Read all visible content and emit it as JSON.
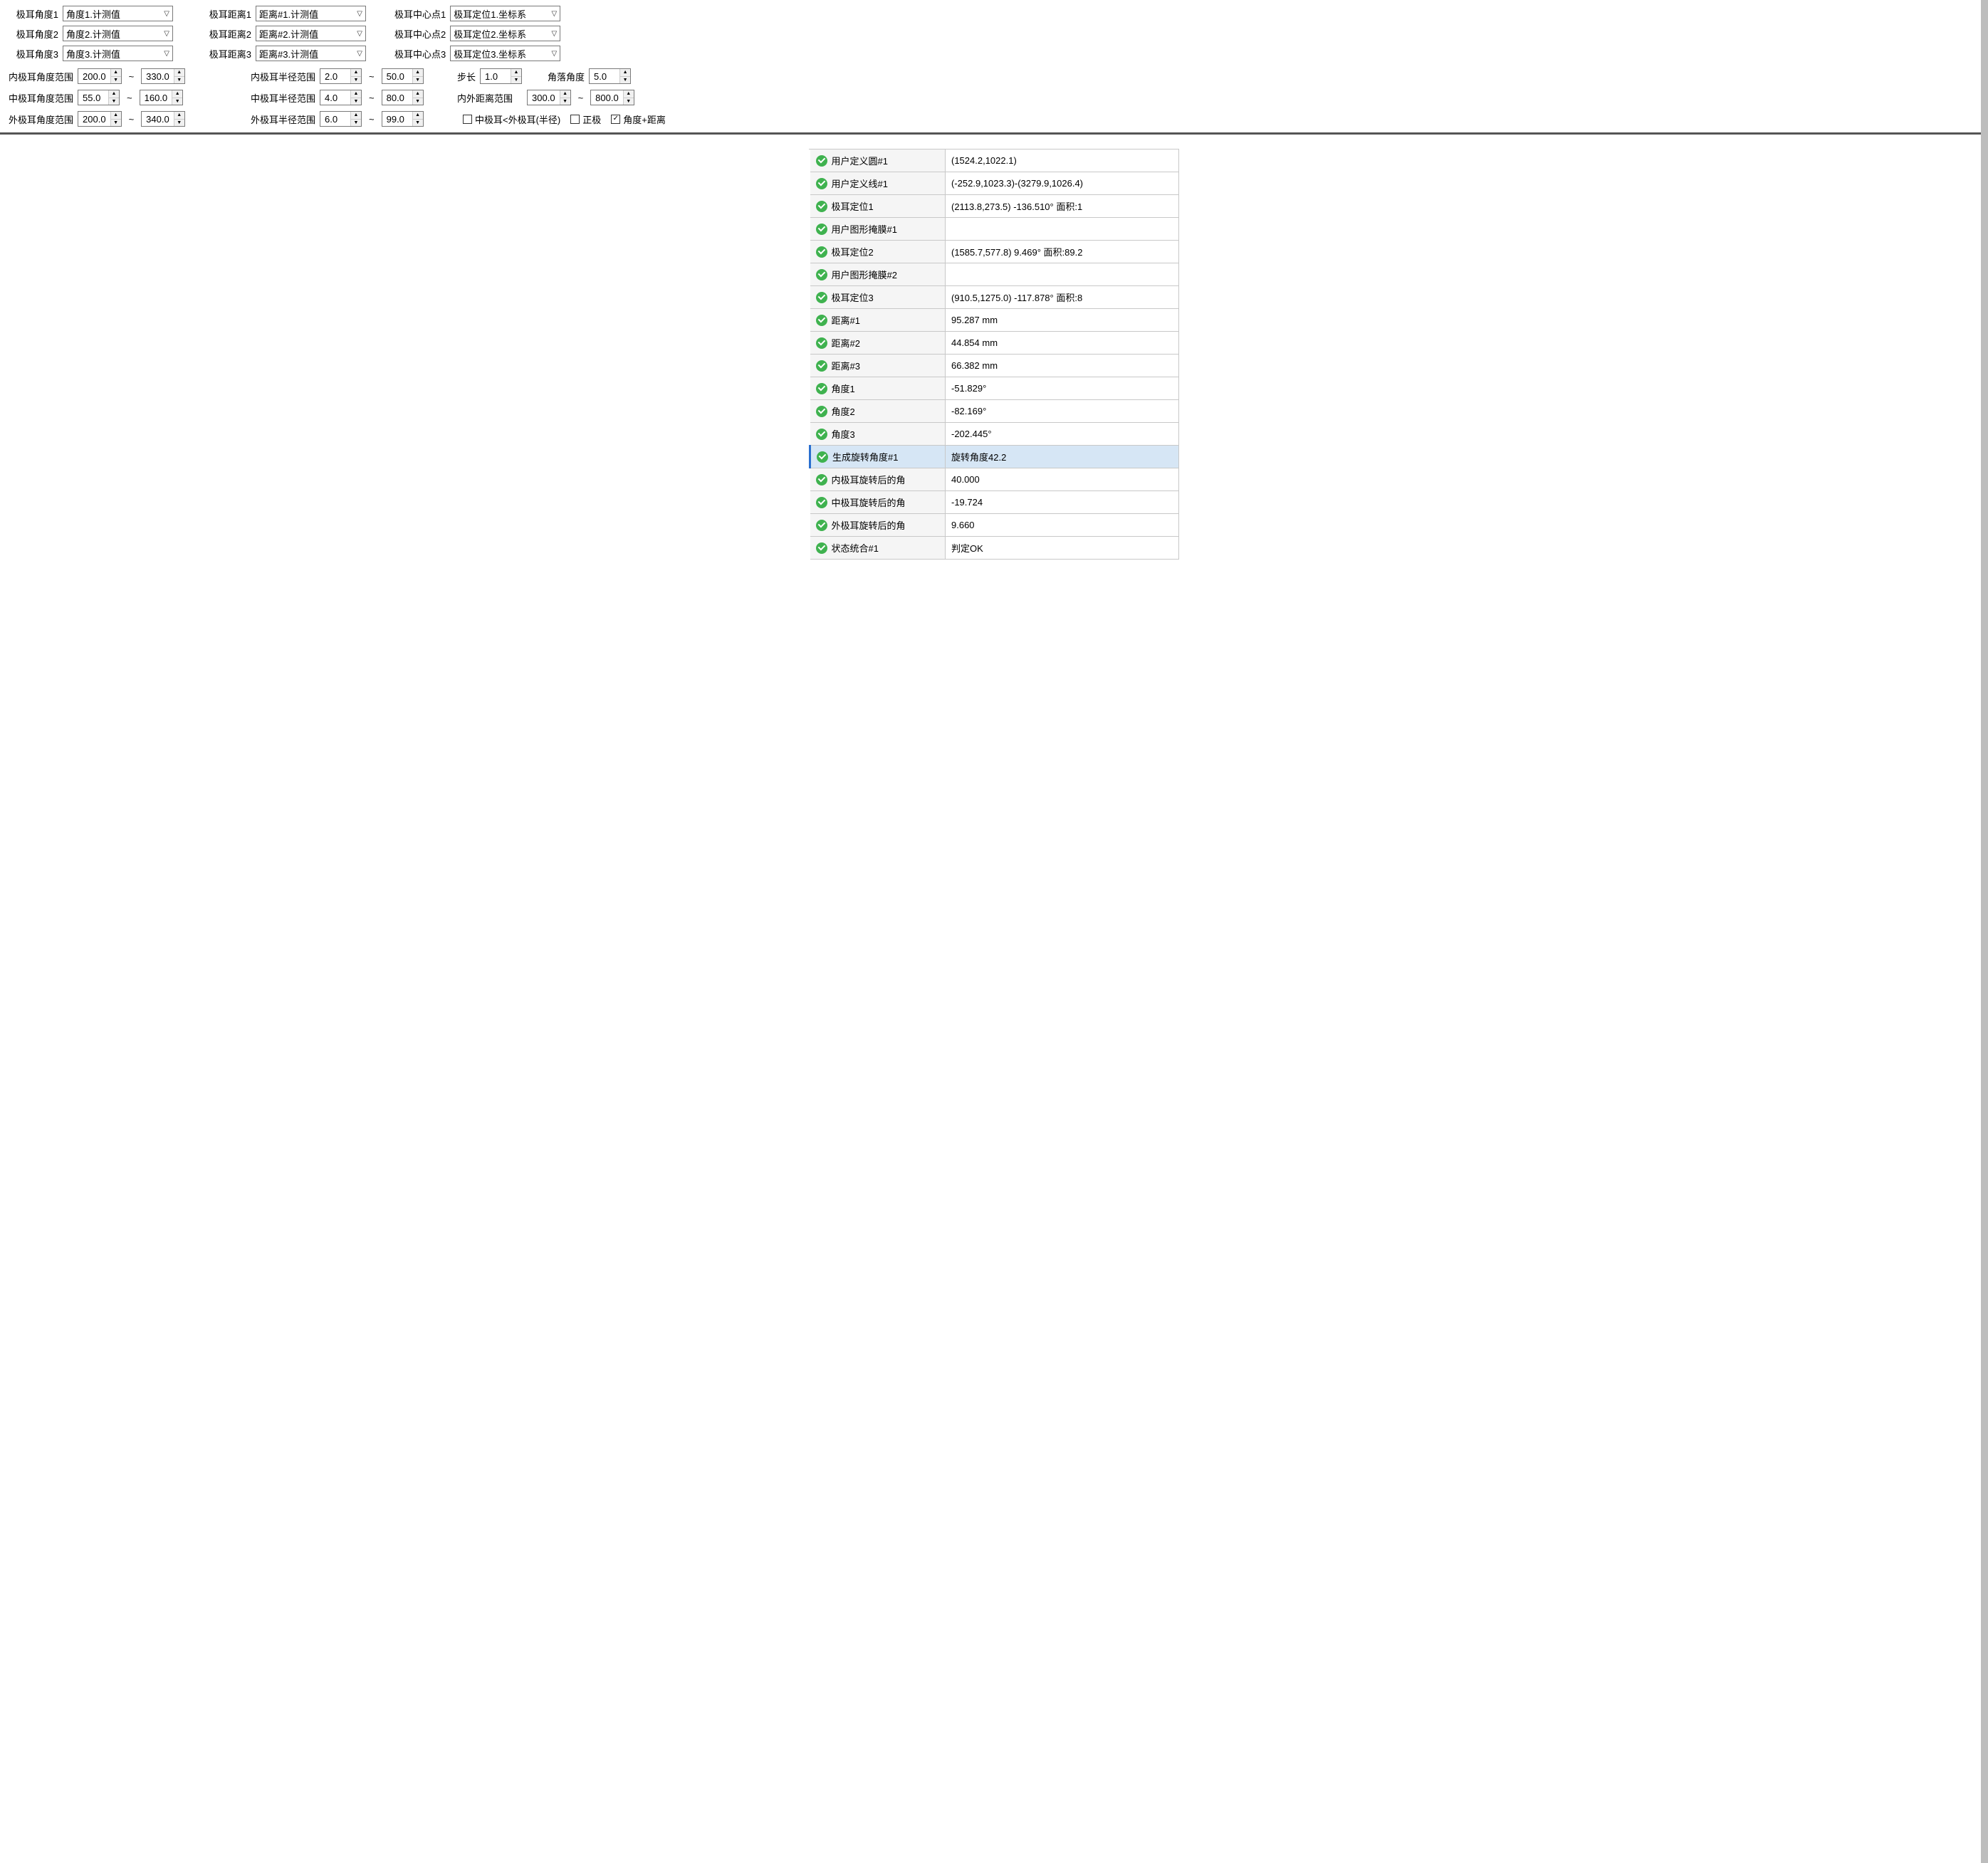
{
  "colors": {
    "border": "#7a7a7a",
    "row_border": "#c8c8c8",
    "name_bg": "#f5f5f5",
    "selected_bg": "#d6e6f5",
    "selected_bar": "#2a6fcf",
    "ok_green": "#3fb24f"
  },
  "combos": {
    "angle1": {
      "label": "极耳角度1",
      "value": "角度1.计测值"
    },
    "angle2": {
      "label": "极耳角度2",
      "value": "角度2.计测值"
    },
    "angle3": {
      "label": "极耳角度3",
      "value": "角度3.计测值"
    },
    "dist1": {
      "label": "极耳距离1",
      "value": "距离#1.计测值"
    },
    "dist2": {
      "label": "极耳距离2",
      "value": "距离#2.计测值"
    },
    "dist3": {
      "label": "极耳距离3",
      "value": "距离#3.计测值"
    },
    "center1": {
      "label": "极耳中心点1",
      "value": "极耳定位1.坐标系"
    },
    "center2": {
      "label": "极耳中心点2",
      "value": "极耳定位2.坐标系"
    },
    "center3": {
      "label": "极耳中心点3",
      "value": "极耳定位3.坐标系"
    }
  },
  "ranges": {
    "inner_angle": {
      "label": "内极耳角度范围",
      "lo": "200.0",
      "hi": "330.0"
    },
    "middle_angle": {
      "label": "中极耳角度范围",
      "lo": "55.0",
      "hi": "160.0"
    },
    "outer_angle": {
      "label": "外极耳角度范围",
      "lo": "200.0",
      "hi": "340.0"
    },
    "inner_radius": {
      "label": "内极耳半径范围",
      "lo": "2.0",
      "hi": "50.0"
    },
    "middle_radius": {
      "label": "中极耳半径范围",
      "lo": "4.0",
      "hi": "80.0"
    },
    "outer_radius": {
      "label": "外极耳半径范围",
      "lo": "6.0",
      "hi": "99.0"
    },
    "step": {
      "label": "步长",
      "value": "1.0"
    },
    "corner_angle": {
      "label": "角落角度",
      "value": "5.0"
    },
    "inout_dist": {
      "label": "内外距离范围",
      "lo": "300.0",
      "hi": "800.0"
    }
  },
  "checks": {
    "mid_lt_out": {
      "label": "中极耳<外极耳(半径)",
      "checked": false
    },
    "positive": {
      "label": "正极",
      "checked": false
    },
    "angle_dist": {
      "label": "角度+距离",
      "checked": true
    }
  },
  "tilde": "~",
  "results": [
    {
      "name": "用户定义圆#1",
      "value": "(1524.2,1022.1)",
      "selected": false
    },
    {
      "name": "用户定义线#1",
      "value": "(-252.9,1023.3)-(3279.9,1026.4)",
      "selected": false
    },
    {
      "name": "极耳定位1",
      "value": "(2113.8,273.5) -136.510° 面积:1",
      "selected": false
    },
    {
      "name": "用户图形掩膜#1",
      "value": "",
      "selected": false
    },
    {
      "name": "极耳定位2",
      "value": "(1585.7,577.8) 9.469° 面积:89.2",
      "selected": false
    },
    {
      "name": "用户图形掩膜#2",
      "value": "",
      "selected": false
    },
    {
      "name": "极耳定位3",
      "value": "(910.5,1275.0) -117.878° 面积:8",
      "selected": false
    },
    {
      "name": "距离#1",
      "value": "95.287 mm",
      "selected": false
    },
    {
      "name": "距离#2",
      "value": "44.854 mm",
      "selected": false
    },
    {
      "name": "距离#3",
      "value": "66.382 mm",
      "selected": false
    },
    {
      "name": "角度1",
      "value": "-51.829°",
      "selected": false
    },
    {
      "name": "角度2",
      "value": "-82.169°",
      "selected": false
    },
    {
      "name": "角度3",
      "value": "-202.445°",
      "selected": false
    },
    {
      "name": "生成旋转角度#1",
      "value": "旋转角度42.2",
      "selected": true
    },
    {
      "name": "内极耳旋转后的角",
      "value": "40.000",
      "selected": false
    },
    {
      "name": "中极耳旋转后的角",
      "value": "-19.724",
      "selected": false
    },
    {
      "name": "外极耳旋转后的角",
      "value": "9.660",
      "selected": false
    },
    {
      "name": "状态统合#1",
      "value": "判定OK",
      "selected": false
    }
  ]
}
